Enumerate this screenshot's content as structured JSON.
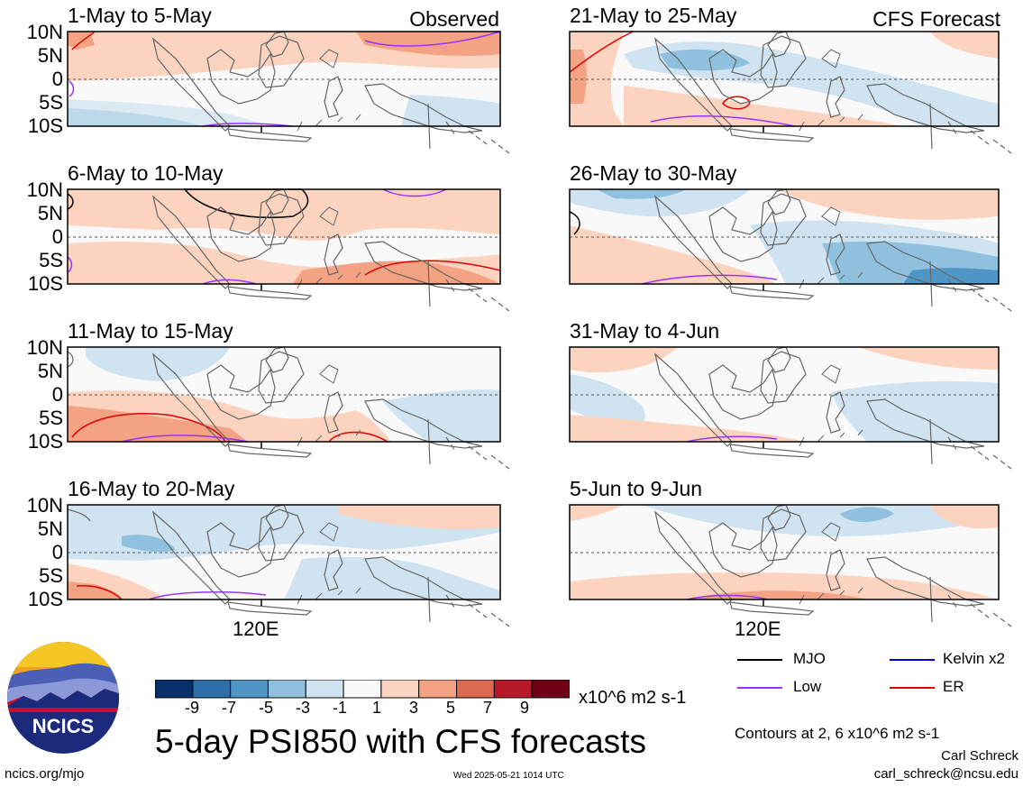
{
  "observed_label": "Observed",
  "forecast_label": "CFS Forecast",
  "lat_labels": [
    "10N",
    "5N",
    "0",
    "5S",
    "10S"
  ],
  "lon_label": "120E",
  "panels_left": [
    {
      "title": "1-May to 5-May"
    },
    {
      "title": "6-May to 10-May"
    },
    {
      "title": "11-May to 15-May"
    },
    {
      "title": "16-May to 20-May"
    }
  ],
  "panels_right": [
    {
      "title": "21-May to 25-May"
    },
    {
      "title": "26-May to 30-May"
    },
    {
      "title": "31-May to 4-Jun"
    },
    {
      "title": "5-Jun to 9-Jun"
    }
  ],
  "colorbar": {
    "ticks": [
      "-9",
      "-7",
      "-5",
      "-3",
      "-1",
      "1",
      "3",
      "5",
      "7",
      "9"
    ],
    "units": "x10^6 m2 s-1",
    "colors": [
      "#08306b",
      "#2f6fa9",
      "#4f95c6",
      "#8fc1de",
      "#cfe3f0",
      "#f9f9f9",
      "#fbd3bf",
      "#f3a283",
      "#dc6a4f",
      "#b61928",
      "#6f0016"
    ]
  },
  "title": "5-day PSI850 with CFS forecasts",
  "logo_text": "NCICS",
  "url": "ncics.org/mjo",
  "timestamp": "Wed 2025-05-21 1014 UTC",
  "legend": {
    "mjo": "MJO",
    "kelvin": "Kelvin x2",
    "low": "Low",
    "er": "ER",
    "colors": {
      "mjo": "#000000",
      "kelvin": "#0000cc",
      "low": "#9933ff",
      "er": "#e00000"
    }
  },
  "contours_note": "Contours at 2, 6 x10^6 m2 s-1",
  "author": "Carl Schreck",
  "email": "carl_schreck@ncsu.edu"
}
